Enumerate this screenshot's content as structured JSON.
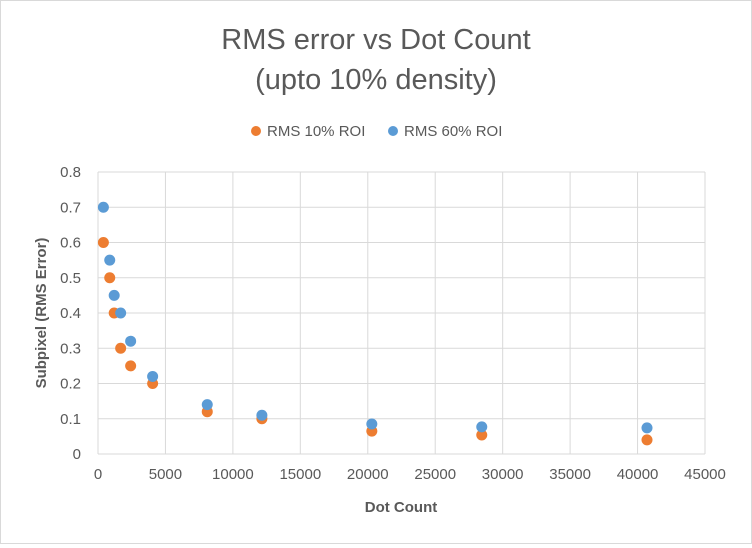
{
  "chart_data": {
    "type": "scatter",
    "title_line1": "RMS error vs Dot Count",
    "title_line2": "(upto 10% density)",
    "xlabel": "Dot Count",
    "ylabel": "Subpixel (RMS Error)",
    "xlim": [
      0,
      45000
    ],
    "ylim": [
      0,
      0.8
    ],
    "xticks": [
      "0",
      "5000",
      "10000",
      "15000",
      "20000",
      "25000",
      "30000",
      "35000",
      "40000",
      "45000"
    ],
    "yticks": [
      "0",
      "0.1",
      "0.2",
      "0.3",
      "0.4",
      "0.5",
      "0.6",
      "0.7",
      "0.8"
    ],
    "grid": true,
    "legend_position": "top",
    "series": [
      {
        "name": "RMS 10% ROI",
        "color": "#ed7d31",
        "x": [
          400,
          870,
          1200,
          1680,
          2420,
          4050,
          8100,
          12150,
          20300,
          28450,
          40700
        ],
        "y": [
          0.6,
          0.5,
          0.4,
          0.3,
          0.25,
          0.2,
          0.12,
          0.1,
          0.065,
          0.054,
          0.04
        ]
      },
      {
        "name": "RMS 60% ROI",
        "color": "#5b9bd5",
        "x": [
          400,
          870,
          1200,
          1680,
          2420,
          4050,
          8100,
          12150,
          20300,
          28450,
          40700
        ],
        "y": [
          0.7,
          0.55,
          0.45,
          0.4,
          0.32,
          0.22,
          0.14,
          0.11,
          0.085,
          0.077,
          0.074
        ]
      }
    ]
  }
}
